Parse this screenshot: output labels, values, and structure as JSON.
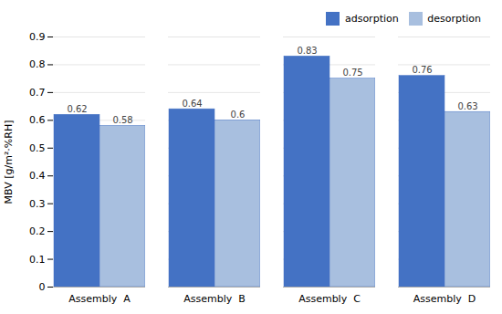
{
  "chart_data": {
    "type": "bar",
    "categories": [
      "Assembly  A",
      "Assembly  B",
      "Assembly  C",
      "Assembly  D"
    ],
    "series": [
      {
        "name": "adsorption",
        "color": "#4472C4",
        "values": [
          0.62,
          0.64,
          0.83,
          0.76
        ]
      },
      {
        "name": "desorption",
        "color": "#a8bfdf",
        "values": [
          0.58,
          0.6,
          0.75,
          0.63
        ]
      }
    ],
    "ylabel": "MBV [g/m²·%RH]",
    "ylim": [
      0,
      0.9
    ],
    "yticks": [
      0,
      0.1,
      0.2,
      0.3,
      0.4,
      0.5,
      0.6,
      0.7,
      0.8,
      0.9
    ],
    "grid": true,
    "legend": "upper right",
    "data_labels": true
  }
}
